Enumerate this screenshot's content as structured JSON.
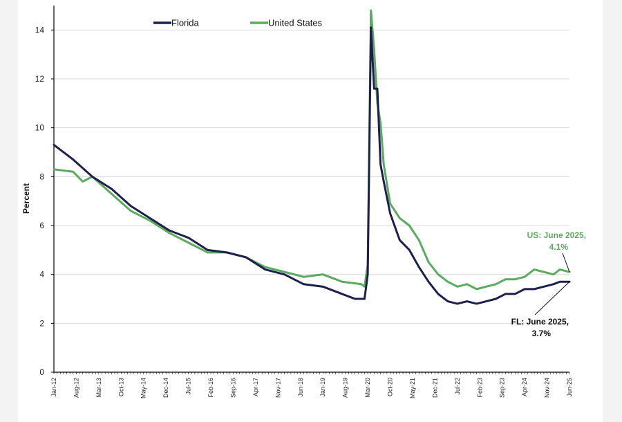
{
  "chart_data": {
    "type": "line",
    "title": "",
    "xlabel": "",
    "ylabel": "Percent",
    "ylim": [
      0,
      15
    ],
    "yticks": [
      0,
      2,
      4,
      6,
      8,
      10,
      12,
      14
    ],
    "grid": true,
    "legend_position": "top-left",
    "x_tick_labels": [
      "Jan-12",
      "Aug-12",
      "Mar-13",
      "Oct-13",
      "May-14",
      "Dec-14",
      "Jul-15",
      "Feb-16",
      "Sep-16",
      "Apr-17",
      "Nov-17",
      "Jun-18",
      "Jan-19",
      "Aug-19",
      "Mar-20",
      "Oct-20",
      "May-21",
      "Dec-21",
      "Jul-22",
      "Feb-23",
      "Sep-23",
      "Apr-24",
      "Nov-24",
      "Jun-25"
    ],
    "x_start": "Jan-12",
    "x_end": "Jun-25",
    "series": [
      {
        "name": "Florida",
        "color": "#1f1f4d",
        "points": [
          [
            "Jan-12",
            9.3
          ],
          [
            "Jul-12",
            8.7
          ],
          [
            "Jan-13",
            8.0
          ],
          [
            "Jul-13",
            7.5
          ],
          [
            "Jan-14",
            6.8
          ],
          [
            "Jul-14",
            6.3
          ],
          [
            "Jan-15",
            5.8
          ],
          [
            "Jul-15",
            5.5
          ],
          [
            "Jan-16",
            5.0
          ],
          [
            "Jul-16",
            4.9
          ],
          [
            "Jan-17",
            4.7
          ],
          [
            "Jul-17",
            4.2
          ],
          [
            "Jan-18",
            4.0
          ],
          [
            "Jul-18",
            3.6
          ],
          [
            "Jan-19",
            3.5
          ],
          [
            "Jul-19",
            3.2
          ],
          [
            "Nov-19",
            3.0
          ],
          [
            "Feb-20",
            3.0
          ],
          [
            "Mar-20",
            4.0
          ],
          [
            "Apr-20",
            14.1
          ],
          [
            "May-20",
            11.6
          ],
          [
            "Jun-20",
            11.6
          ],
          [
            "Jul-20",
            8.5
          ],
          [
            "Aug-20",
            7.8
          ],
          [
            "Oct-20",
            6.5
          ],
          [
            "Jan-21",
            5.4
          ],
          [
            "Apr-21",
            5.0
          ],
          [
            "Jul-21",
            4.3
          ],
          [
            "Oct-21",
            3.7
          ],
          [
            "Jan-22",
            3.2
          ],
          [
            "Apr-22",
            2.9
          ],
          [
            "Jul-22",
            2.8
          ],
          [
            "Oct-22",
            2.9
          ],
          [
            "Jan-23",
            2.8
          ],
          [
            "Apr-23",
            2.9
          ],
          [
            "Jul-23",
            3.0
          ],
          [
            "Oct-23",
            3.2
          ],
          [
            "Jan-24",
            3.2
          ],
          [
            "Apr-24",
            3.4
          ],
          [
            "Jul-24",
            3.4
          ],
          [
            "Oct-24",
            3.5
          ],
          [
            "Jan-25",
            3.6
          ],
          [
            "Mar-25",
            3.7
          ],
          [
            "Jun-25",
            3.7
          ]
        ]
      },
      {
        "name": "United States",
        "color": "#5aab5f",
        "points": [
          [
            "Jan-12",
            8.3
          ],
          [
            "Jul-12",
            8.2
          ],
          [
            "Oct-12",
            7.8
          ],
          [
            "Jan-13",
            8.0
          ],
          [
            "Jul-13",
            7.3
          ],
          [
            "Jan-14",
            6.6
          ],
          [
            "Jul-14",
            6.2
          ],
          [
            "Jan-15",
            5.7
          ],
          [
            "Jul-15",
            5.3
          ],
          [
            "Jan-16",
            4.9
          ],
          [
            "Jul-16",
            4.9
          ],
          [
            "Jan-17",
            4.7
          ],
          [
            "Jul-17",
            4.3
          ],
          [
            "Jan-18",
            4.1
          ],
          [
            "Jul-18",
            3.9
          ],
          [
            "Jan-19",
            4.0
          ],
          [
            "Jul-19",
            3.7
          ],
          [
            "Jan-20",
            3.6
          ],
          [
            "Feb-20",
            3.5
          ],
          [
            "Mar-20",
            4.4
          ],
          [
            "Apr-20",
            14.8
          ],
          [
            "May-20",
            13.2
          ],
          [
            "Jun-20",
            11.0
          ],
          [
            "Jul-20",
            10.2
          ],
          [
            "Aug-20",
            8.5
          ],
          [
            "Oct-20",
            6.9
          ],
          [
            "Jan-21",
            6.3
          ],
          [
            "Apr-21",
            6.0
          ],
          [
            "Jul-21",
            5.4
          ],
          [
            "Oct-21",
            4.5
          ],
          [
            "Jan-22",
            4.0
          ],
          [
            "Apr-22",
            3.7
          ],
          [
            "Jul-22",
            3.5
          ],
          [
            "Oct-22",
            3.6
          ],
          [
            "Jan-23",
            3.4
          ],
          [
            "Apr-23",
            3.5
          ],
          [
            "Jul-23",
            3.6
          ],
          [
            "Oct-23",
            3.8
          ],
          [
            "Jan-24",
            3.8
          ],
          [
            "Apr-24",
            3.9
          ],
          [
            "Jul-24",
            4.2
          ],
          [
            "Oct-24",
            4.1
          ],
          [
            "Jan-25",
            4.0
          ],
          [
            "Mar-25",
            4.2
          ],
          [
            "Jun-25",
            4.1
          ]
        ]
      }
    ],
    "annotations": [
      {
        "lines": [
          "US: June 2025,",
          "4.1%"
        ],
        "color": "#5aab5f",
        "series": "United States"
      },
      {
        "lines": [
          "FL: June 2025,",
          "3.7%"
        ],
        "color": "#111111",
        "series": "Florida"
      }
    ]
  }
}
